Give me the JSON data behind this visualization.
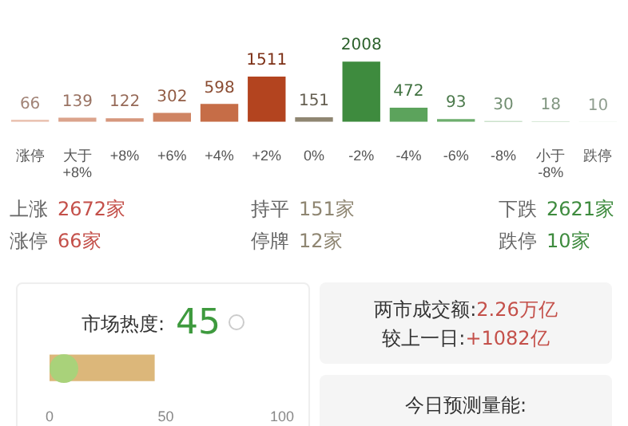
{
  "chart_data": [
    {
      "type": "bar",
      "categories": [
        "涨停",
        "大于 +8%",
        "+8%",
        "+6%",
        "+4%",
        "+2%",
        "0%",
        "-2%",
        "-4%",
        "-6%",
        "-8%",
        "小于 -8%",
        "跌停"
      ],
      "values": [
        66,
        139,
        122,
        302,
        598,
        1511,
        151,
        2008,
        472,
        93,
        30,
        18,
        10
      ],
      "colors": [
        "#e8bcaa",
        "#dba38c",
        "#d6977d",
        "#cf8463",
        "#c66d47",
        "#b3441f",
        "#8f8672",
        "#3e8b3e",
        "#5ca35c",
        "#6dae6d",
        "#a0c9a0",
        "#b8d6b8",
        "#cde2cd"
      ],
      "data_labels": true,
      "grid": false,
      "legend": false,
      "tick_labels": "x",
      "annotations": [
        "上涨",
        "2672家",
        "持平",
        "151家",
        "下跌",
        "2621家",
        "涨停",
        "66家",
        "停牌",
        "12家",
        "跌停",
        "10家"
      ]
    },
    {
      "type": "bar",
      "orientation": "horizontal",
      "title": "市场热度:",
      "categories": [
        null
      ],
      "values": [
        45
      ],
      "colors": [
        "#dcb77a"
      ],
      "xlim": [
        0,
        100
      ],
      "xticks": [
        0,
        50,
        100
      ],
      "data_labels": true,
      "grid": false,
      "legend": false,
      "tick_labels": "x"
    },
    {
      "type": "other",
      "annotations": [
        "两市成交额:",
        "2.26万亿",
        "较上一日:",
        "+1082亿",
        "今日预测量能:"
      ]
    }
  ]
}
